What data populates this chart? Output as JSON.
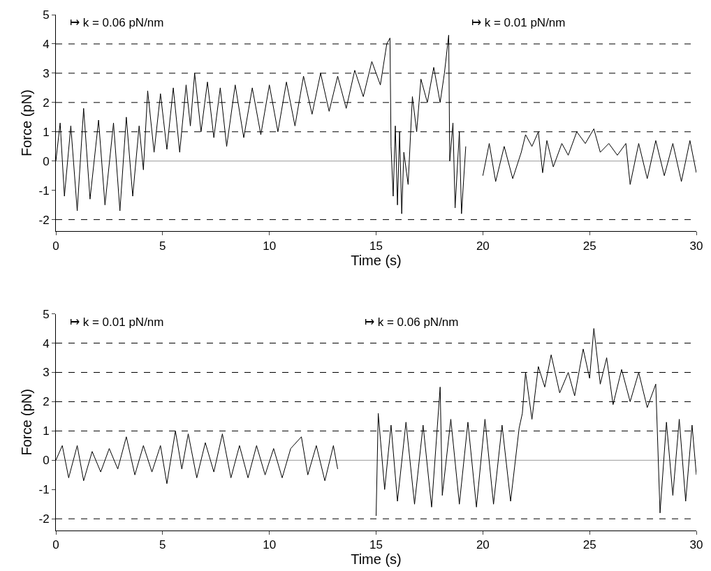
{
  "chart_data": [
    {
      "type": "line",
      "xlabel": "Time (s)",
      "ylabel": "Force (pN)",
      "xlim": [
        0,
        30
      ],
      "xticks": [
        0,
        5,
        10,
        15,
        20,
        25,
        30
      ],
      "ylim": [
        -2.4,
        5
      ],
      "yticks": [
        -2,
        -1,
        0,
        1,
        2,
        3,
        4,
        5
      ],
      "x": [
        0,
        0.2,
        0.4,
        0.7,
        1,
        1.3,
        1.6,
        2,
        2.3,
        2.7,
        3,
        3.3,
        3.6,
        3.9,
        4.1,
        4.3,
        4.6,
        4.9,
        5.2,
        5.5,
        5.8,
        6.1,
        6.3,
        6.5,
        6.8,
        7.1,
        7.4,
        7.7,
        8,
        8.4,
        8.8,
        9.2,
        9.6,
        10,
        10.4,
        10.8,
        11.2,
        11.6,
        12,
        12.4,
        12.8,
        13.2,
        13.6,
        14,
        14.4,
        14.8,
        15.2,
        15.5,
        15.65,
        15.7,
        15.8,
        15.9,
        16,
        16.1,
        16.2,
        16.3,
        16.5,
        16.7,
        16.9,
        17.1,
        17.4,
        17.7,
        18,
        18.2,
        18.4,
        18.45,
        18.6,
        18.7,
        18.9,
        19,
        19.2,
        19.25,
        20,
        20.3,
        20.6,
        21,
        21.4,
        21.8,
        22,
        22.3,
        22.6,
        22.8,
        23,
        23.3,
        23.7,
        24,
        24.4,
        24.8,
        25.2,
        25.5,
        25.9,
        26.3,
        26.7,
        26.9,
        27.3,
        27.7,
        28.1,
        28.5,
        28.9,
        29.3,
        29.7,
        30
      ],
      "series": [
        {
          "color": "#000000",
          "values": [
            0,
            1.3,
            -1.2,
            1.2,
            -1.7,
            1.8,
            -1.3,
            1.4,
            -1.5,
            1.3,
            -1.7,
            1.5,
            -1.2,
            1.2,
            -0.3,
            2.4,
            0.3,
            2.3,
            0.4,
            2.5,
            0.3,
            2.6,
            1.2,
            3.0,
            1.0,
            2.7,
            0.8,
            2.5,
            0.5,
            2.6,
            0.8,
            2.5,
            0.9,
            2.6,
            1.0,
            2.7,
            1.2,
            2.9,
            1.6,
            3.0,
            1.7,
            2.9,
            1.8,
            3.1,
            2.2,
            3.4,
            2.6,
            4.0,
            4.2,
            0.5,
            -1.2,
            1.2,
            -1.5,
            1.0,
            -1.8,
            0.3,
            -0.8,
            2.2,
            1.0,
            2.8,
            2.0,
            3.2,
            2.0,
            3.0,
            4.3,
            0.0,
            1.3,
            -1.6,
            1.0,
            -1.8,
            0.5,
            null,
            -0.5,
            0.6,
            -0.7,
            0.5,
            -0.6,
            0.3,
            0.9,
            0.5,
            1.0,
            -0.4,
            0.7,
            -0.2,
            0.6,
            0.2,
            1.0,
            0.6,
            1.1,
            0.3,
            0.6,
            0.2,
            0.6,
            -0.8,
            0.6,
            -0.6,
            0.7,
            -0.5,
            0.6,
            -0.7,
            0.7,
            -0.4
          ]
        }
      ],
      "ref_lines": [
        {
          "axis": "y",
          "value": 0,
          "color": "#999999",
          "line_style": "solid"
        },
        {
          "axis": "y",
          "value": -2,
          "color": "#000000",
          "line_style": "dashed"
        },
        {
          "axis": "y",
          "value": 1,
          "color": "#000000",
          "line_style": "dashed"
        },
        {
          "axis": "y",
          "value": 2,
          "color": "#000000",
          "line_style": "dashed"
        },
        {
          "axis": "y",
          "value": 3,
          "color": "#000000",
          "line_style": "dashed"
        },
        {
          "axis": "y",
          "value": 4,
          "color": "#000000",
          "line_style": "dashed"
        }
      ],
      "annotations": [
        "↦ k = 0.06 pN/nm",
        "↦ k = 0.01 pN/nm"
      ]
    },
    {
      "type": "line",
      "xlabel": "Time (s)",
      "ylabel": "Force (pN)",
      "xlim": [
        0,
        30
      ],
      "xticks": [
        0,
        5,
        10,
        15,
        20,
        25,
        30
      ],
      "ylim": [
        -2.4,
        5
      ],
      "yticks": [
        -2,
        -1,
        0,
        1,
        2,
        3,
        4,
        5
      ],
      "x": [
        0,
        0.3,
        0.6,
        1,
        1.3,
        1.7,
        2.1,
        2.5,
        2.9,
        3.3,
        3.7,
        4.1,
        4.5,
        4.9,
        5.2,
        5.6,
        5.9,
        6.2,
        6.6,
        7,
        7.4,
        7.8,
        8.2,
        8.6,
        9,
        9.4,
        9.8,
        10.2,
        10.6,
        11,
        11.5,
        11.8,
        12.2,
        12.6,
        13,
        13.2,
        13.25,
        15,
        15.1,
        15.4,
        15.7,
        16,
        16.4,
        16.8,
        17.2,
        17.6,
        18,
        18.1,
        18.5,
        18.9,
        19.3,
        19.7,
        20.1,
        20.5,
        20.9,
        21.3,
        21.7,
        21.85,
        22,
        22.3,
        22.6,
        22.9,
        23.2,
        23.6,
        24,
        24.3,
        24.7,
        25,
        25.2,
        25.5,
        25.8,
        26.1,
        26.5,
        26.9,
        27.3,
        27.7,
        28.1,
        28.3,
        28.6,
        28.9,
        29.2,
        29.5,
        29.8,
        30
      ],
      "series": [
        {
          "color": "#000000",
          "values": [
            0,
            0.5,
            -0.6,
            0.5,
            -0.7,
            0.3,
            -0.4,
            0.4,
            -0.3,
            0.8,
            -0.5,
            0.5,
            -0.4,
            0.5,
            -0.8,
            1.0,
            -0.3,
            0.9,
            -0.6,
            0.6,
            -0.4,
            0.9,
            -0.6,
            0.5,
            -0.6,
            0.5,
            -0.5,
            0.4,
            -0.6,
            0.4,
            0.8,
            -0.5,
            0.5,
            -0.7,
            0.5,
            -0.3,
            null,
            -1.9,
            1.6,
            -1.0,
            1.2,
            -1.4,
            1.3,
            -1.5,
            1.2,
            -1.6,
            2.5,
            -1.2,
            1.4,
            -1.5,
            1.3,
            -1.6,
            1.4,
            -1.5,
            1.2,
            -1.4,
            1.1,
            1.6,
            3.0,
            1.4,
            3.2,
            2.5,
            3.6,
            2.3,
            3.0,
            2.2,
            3.8,
            2.8,
            4.5,
            2.6,
            3.5,
            1.9,
            3.1,
            2.0,
            3.0,
            1.8,
            2.6,
            -1.8,
            1.3,
            -1.2,
            1.4,
            -1.4,
            1.2,
            -0.5
          ]
        }
      ],
      "ref_lines": [
        {
          "axis": "y",
          "value": 0,
          "color": "#999999",
          "line_style": "solid"
        },
        {
          "axis": "y",
          "value": -2,
          "color": "#000000",
          "line_style": "dashed"
        },
        {
          "axis": "y",
          "value": 1,
          "color": "#000000",
          "line_style": "dashed"
        },
        {
          "axis": "y",
          "value": 2,
          "color": "#000000",
          "line_style": "dashed"
        },
        {
          "axis": "y",
          "value": 3,
          "color": "#000000",
          "line_style": "dashed"
        },
        {
          "axis": "y",
          "value": 4,
          "color": "#000000",
          "line_style": "dashed"
        }
      ],
      "annotations": [
        "↦ k = 0.01 pN/nm",
        "↦ k = 0.06 pN/nm"
      ]
    }
  ]
}
